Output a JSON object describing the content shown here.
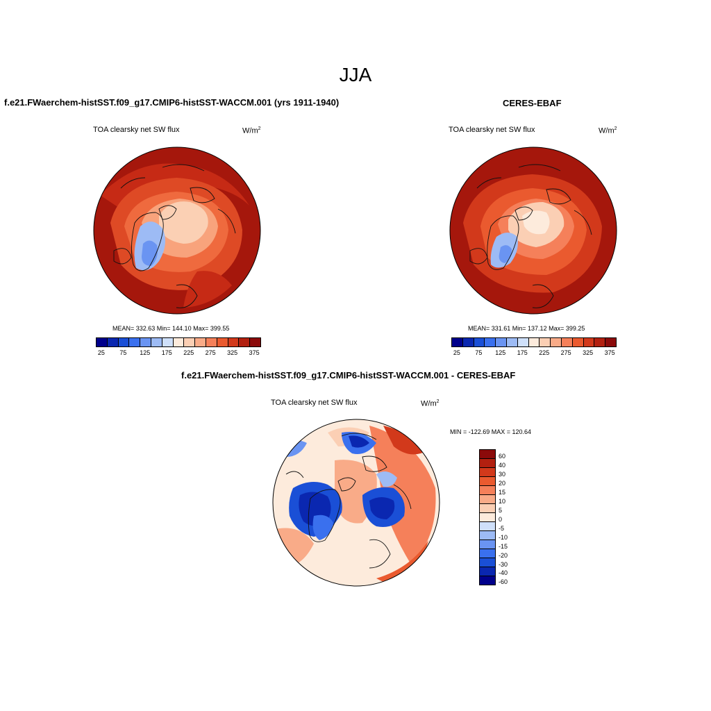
{
  "figure": {
    "season": "JJA",
    "units_base": "W/m",
    "units_exp": "2"
  },
  "panels": {
    "model": {
      "title": "f.e21.FWaerchem-histSST.f09_g17.CMIP6-histSST-WACCM.001 (yrs 1911-1940)",
      "variable": "TOA clearsky net SW flux",
      "stats": "MEAN= 332.63  Min= 144.10  Max= 399.55"
    },
    "obs": {
      "title": "CERES-EBAF",
      "variable": "TOA clearsky net SW flux",
      "stats": "MEAN= 331.61  Min= 137.12  Max= 399.25"
    },
    "diff": {
      "title": "f.e21.FWaerchem-histSST.f09_g17.CMIP6-histSST-WACCM.001 - CERES-EBAF",
      "variable": "TOA clearsky net SW flux",
      "minmax": "MIN = -122.69 MAX = 120.64"
    }
  },
  "colorbars": {
    "absolute": {
      "colors": [
        "#00008b",
        "#0a27b0",
        "#1a4fd6",
        "#3a70ee",
        "#6a94f2",
        "#9dbbf5",
        "#cfe0fa",
        "#fdebdc",
        "#fbcfb4",
        "#f9ab88",
        "#f5805a",
        "#ea5a2f",
        "#d2391b",
        "#b22010",
        "#8b0a0a"
      ],
      "ticks": [
        "25",
        "75",
        "125",
        "175",
        "225",
        "275",
        "325",
        "375"
      ]
    },
    "difference": {
      "colors": [
        "#8b0a0a",
        "#b22010",
        "#d2391b",
        "#ea5a2f",
        "#f5805a",
        "#f9ab88",
        "#fbcfb4",
        "#fdebdc",
        "#cfe0fa",
        "#9dbbf5",
        "#6a94f2",
        "#3a70ee",
        "#1a4fd6",
        "#0a27b0",
        "#00008b"
      ],
      "ticks": [
        "60",
        "40",
        "30",
        "20",
        "15",
        "10",
        "5",
        "0",
        "-5",
        "-10",
        "-15",
        "-20",
        "-30",
        "-40",
        "-60"
      ]
    }
  }
}
